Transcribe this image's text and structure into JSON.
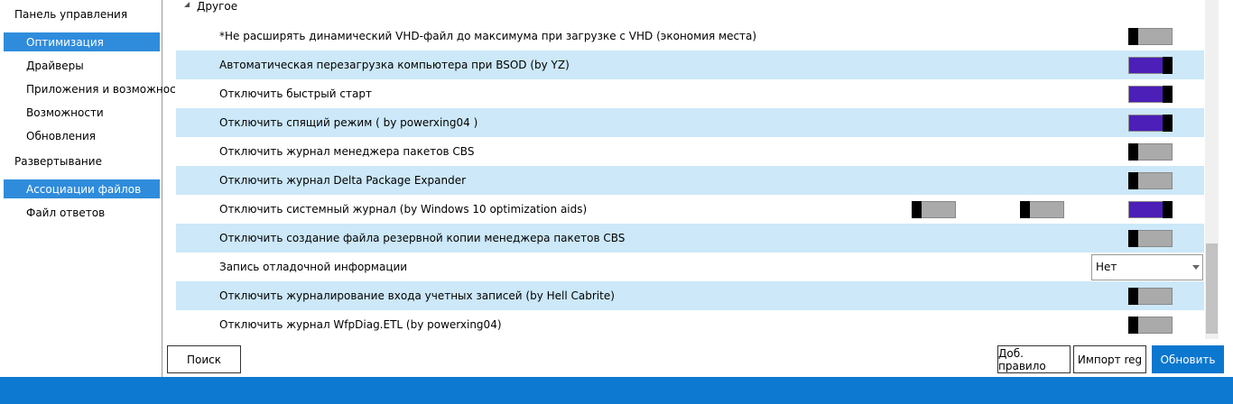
{
  "sidebar": {
    "groups": [
      {
        "title": "Панель управления",
        "items": [
          {
            "label": "Оптимизация",
            "selected": true
          },
          {
            "label": "Драйверы",
            "selected": false
          },
          {
            "label": "Приложения и возможнос",
            "selected": false
          },
          {
            "label": "Возможности",
            "selected": false
          },
          {
            "label": "Обновления",
            "selected": false
          }
        ]
      },
      {
        "title": "Развертывание",
        "items": [
          {
            "label": "Ассоциации файлов",
            "selected": true
          },
          {
            "label": "Файл ответов",
            "selected": false
          }
        ]
      }
    ]
  },
  "section": {
    "title": "Другое",
    "rows": [
      {
        "label": "*Не расширять динамический VHD-файл до максимума при загрузке с VHD (экономия места)",
        "toggles": [
          false
        ]
      },
      {
        "label": "Автоматическая перезагрузка компьютера при BSOD (by YZ)",
        "toggles": [
          true
        ]
      },
      {
        "label": "Отключить быстрый старт",
        "toggles": [
          true
        ]
      },
      {
        "label": "Отключить спящий режим ( by powerxing04 )",
        "toggles": [
          true
        ]
      },
      {
        "label": "Отключить журнал менеджера пакетов CBS",
        "toggles": [
          false
        ]
      },
      {
        "label": "Отключить журнал Delta Package Expander",
        "toggles": [
          false
        ]
      },
      {
        "label": "Отключить системный журнал (by Windows 10 optimization aids)",
        "toggles": [
          false,
          false,
          true
        ]
      },
      {
        "label": "Отключить создание файла резервной копии менеджера пакетов CBS",
        "toggles": [
          false
        ]
      },
      {
        "label": "Запись отладочной информации",
        "dropdown": "Нет"
      },
      {
        "label": "Отключить журналирование входа учетных записей (by Hell Cabrite)",
        "toggles": [
          false
        ]
      },
      {
        "label": "Отключить журнал WfpDiag.ETL (by powerxing04)",
        "toggles": [
          false
        ]
      }
    ]
  },
  "buttons": {
    "search": "Поиск",
    "add_rule": "Доб. правило",
    "import": "Импорт reg",
    "update": "Обновить"
  }
}
